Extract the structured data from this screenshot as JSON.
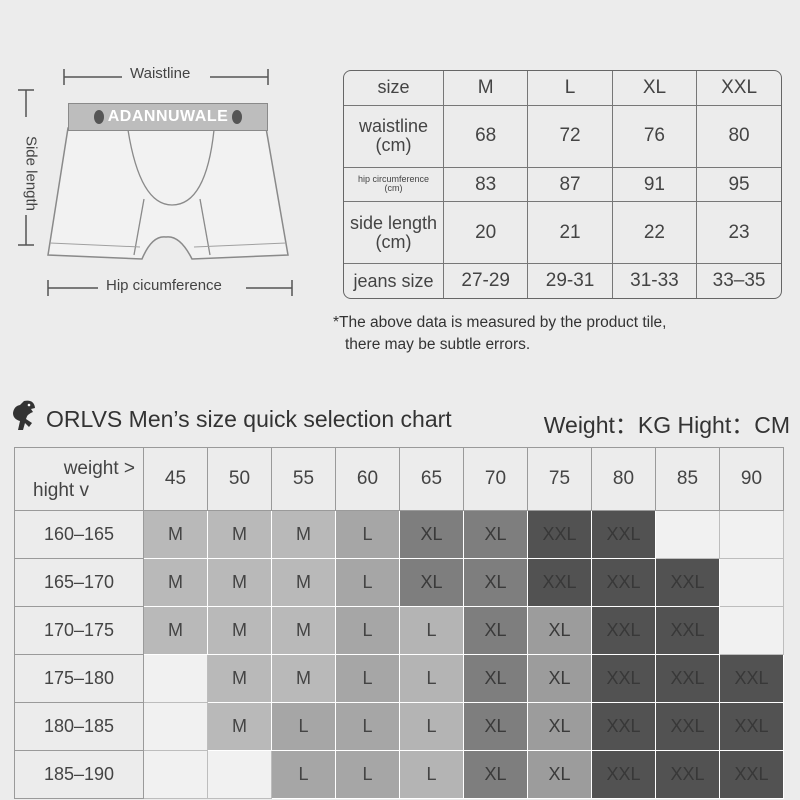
{
  "diagram": {
    "waistline_label": "Waistline",
    "side_length_label": "Side length",
    "hip_label": "Hip cicumference",
    "brand": "ADANNUWALE"
  },
  "size_table": {
    "header": [
      "size",
      "M",
      "L",
      "XL",
      "XXL"
    ],
    "rows": [
      [
        "waistline\n(cm)",
        "68",
        "72",
        "76",
        "80"
      ],
      [
        "hip circumference\n(cm)",
        "83",
        "87",
        "91",
        "95"
      ],
      [
        "side length\n(cm)",
        "20",
        "21",
        "22",
        "23"
      ],
      [
        "jeans size",
        "27-29",
        "29-31",
        "31-33",
        "33–35"
      ]
    ]
  },
  "note": {
    "line1": "*The above data is measured by the product tile,",
    "line2": "there may be subtle errors."
  },
  "quick_chart": {
    "logo_icon": "dinosaur-logo-icon",
    "title": "ORLVS  Men’s size quick selection chart",
    "units": "Weight：KG  Hight：CM",
    "corner_weight": "weight >",
    "corner_height": "hight v",
    "weights": [
      "45",
      "50",
      "55",
      "60",
      "65",
      "70",
      "75",
      "80",
      "85",
      "90"
    ],
    "rows": [
      {
        "height": "160–165",
        "sizes": [
          "M",
          "M",
          "M",
          "L",
          "XL",
          "XL",
          "XXL",
          "XXL",
          "",
          ""
        ]
      },
      {
        "height": "165–170",
        "sizes": [
          "M",
          "M",
          "M",
          "L",
          "XL",
          "XL",
          "XXL",
          "XXL",
          "XXL",
          ""
        ]
      },
      {
        "height": "170–175",
        "sizes": [
          "M",
          "M",
          "M",
          "L",
          "L",
          "XL",
          "XL",
          "XXL",
          "XXL",
          ""
        ]
      },
      {
        "height": "175–180",
        "sizes": [
          "",
          "M",
          "M",
          "L",
          "L",
          "XL",
          "XL",
          "XXL",
          "XXL",
          "XXL"
        ]
      },
      {
        "height": "180–185",
        "sizes": [
          "",
          "M",
          "L",
          "L",
          "L",
          "XL",
          "XL",
          "XXL",
          "XXL",
          "XXL"
        ]
      },
      {
        "height": "185–190",
        "sizes": [
          "",
          "",
          "L",
          "L",
          "L",
          "XL",
          "XL",
          "XXL",
          "XXL",
          "XXL"
        ]
      }
    ],
    "colors": {
      "M": "#b9b9b9",
      "L": "#a6a6a6",
      "XL": "#7e7e7e",
      "XXL": "#525252",
      "empty": "#f1f1f1"
    }
  }
}
